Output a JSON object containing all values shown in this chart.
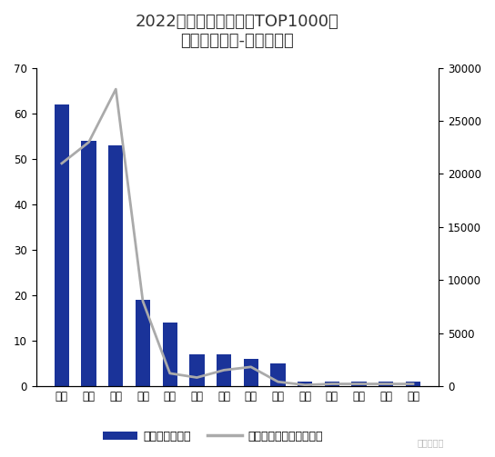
{
  "title_line1": "2022年韩国手游收入榜TOP1000的",
  "title_line2": "中国游戏厂商-按城市划分",
  "categories": [
    "北京",
    "上海",
    "广州",
    "深圳",
    "成都",
    "杭州",
    "苏州",
    "厦门",
    "福州",
    "海南",
    "青岛",
    "无锡",
    "重庆",
    "珠海"
  ],
  "bar_values": [
    62,
    54,
    53,
    19,
    14,
    7,
    7,
    6,
    5,
    1,
    1,
    1,
    1,
    1
  ],
  "line_values": [
    21000,
    23000,
    28000,
    8000,
    1200,
    800,
    1500,
    1800,
    400,
    100,
    200,
    200,
    200,
    200
  ],
  "bar_color": "#1a3399",
  "line_color": "#aaaaaa",
  "bar_ylim": [
    0,
    70
  ],
  "bar_yticks": [
    0,
    10,
    20,
    30,
    40,
    50,
    60,
    70
  ],
  "line_ylim": [
    0,
    30000
  ],
  "line_yticks": [
    0,
    5000,
    10000,
    15000,
    20000,
    25000,
    30000
  ],
  "legend_bar_label": "产品数量（个）",
  "legend_line_label": "产品累计收入（万美元）",
  "background_color": "#ffffff",
  "title_fontsize": 13,
  "tick_fontsize": 8.5,
  "legend_fontsize": 9,
  "watermark": "游戏财经汇"
}
